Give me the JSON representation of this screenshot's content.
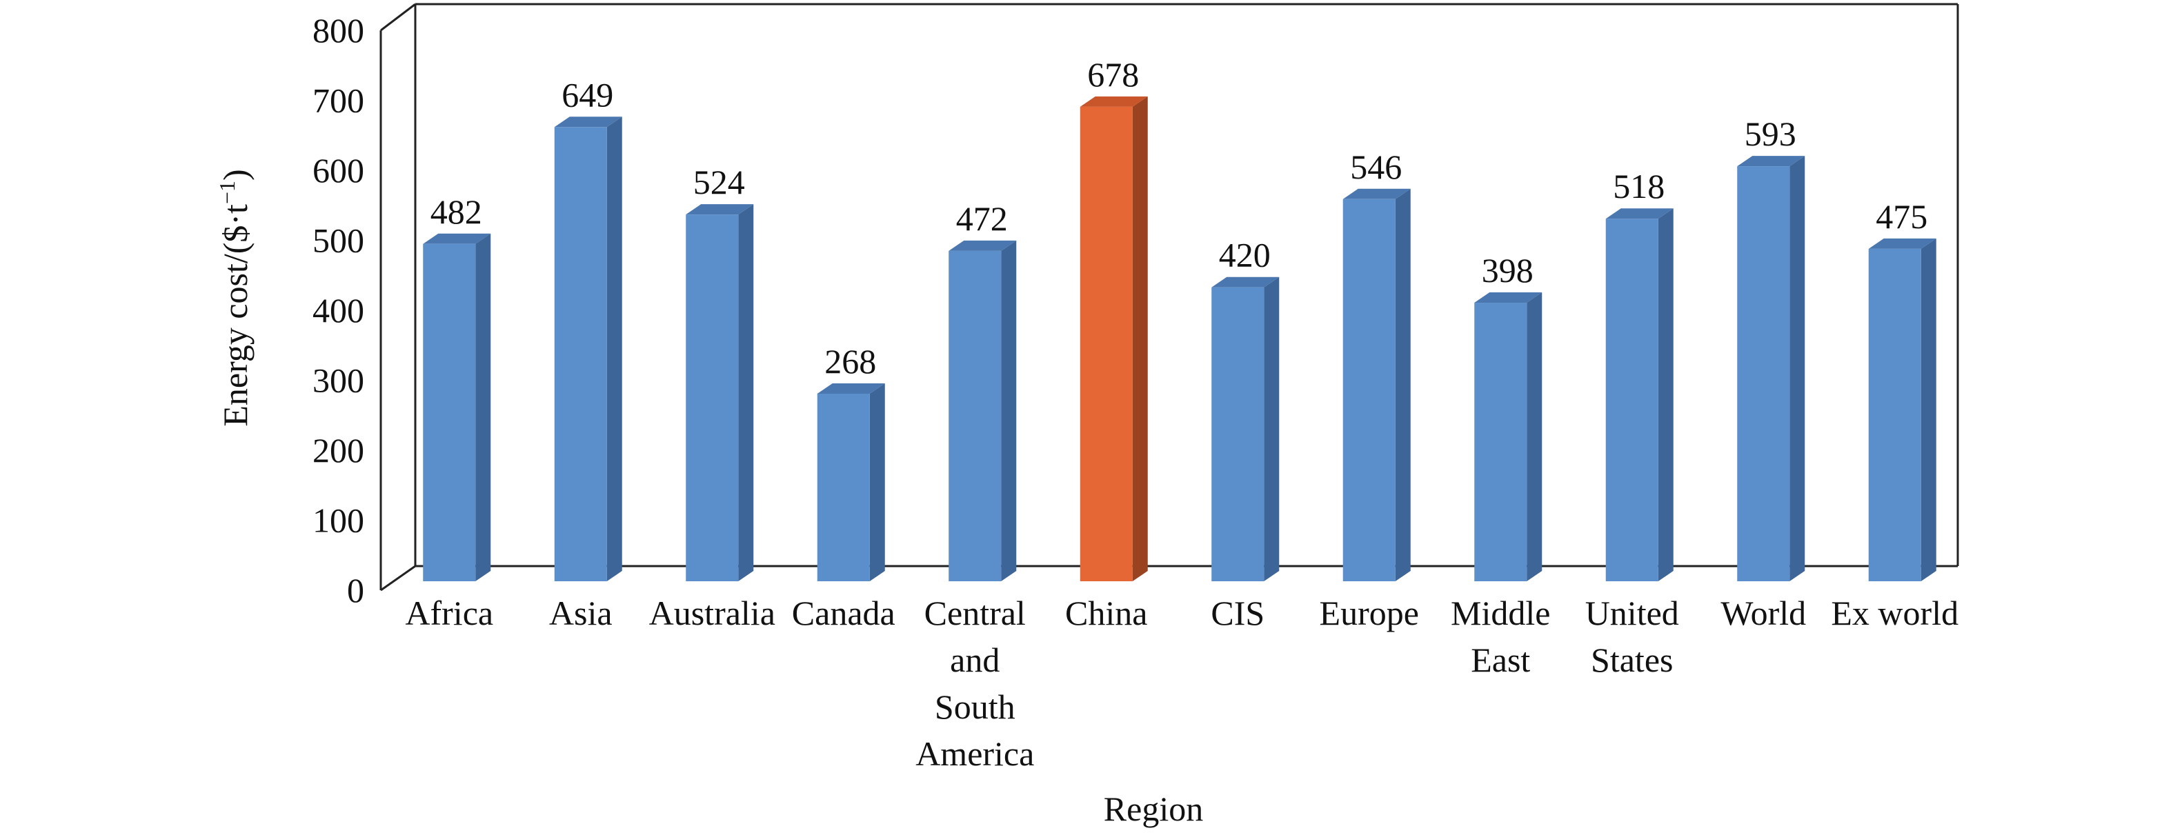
{
  "chart_data": {
    "type": "bar",
    "title": "",
    "xlabel": "Region",
    "ylabel": "Energy cost/($·t",
    "ylabel_sup": "−1",
    "ylabel_close": ")",
    "ylim": [
      0,
      800
    ],
    "yticks": [
      "0",
      "100",
      "200",
      "300",
      "400",
      "500",
      "600",
      "700",
      "800"
    ],
    "grid": false,
    "categories": [
      [
        "Africa"
      ],
      [
        "Asia"
      ],
      [
        "Australia"
      ],
      [
        "Canada"
      ],
      [
        "Central",
        "and",
        "South",
        "America"
      ],
      [
        "China"
      ],
      [
        "CIS"
      ],
      [
        "Europe"
      ],
      [
        "Middle",
        "East"
      ],
      [
        "United",
        "States"
      ],
      [
        "World"
      ],
      [
        "Ex world"
      ]
    ],
    "values": [
      482,
      649,
      524,
      268,
      472,
      678,
      420,
      546,
      398,
      518,
      593,
      475
    ],
    "data_labels": [
      "482",
      "649",
      "524",
      "268",
      "472",
      "678",
      "420",
      "546",
      "398",
      "518",
      "593",
      "475"
    ],
    "colors": {
      "bar": "#5B8FCB",
      "bar_side": "#3E6597",
      "bar_top": "#4A77B0",
      "highlight": "#E46735",
      "highlight_side": "#9A4320",
      "highlight_top": "#C9552A",
      "highlight_index": 5
    }
  }
}
